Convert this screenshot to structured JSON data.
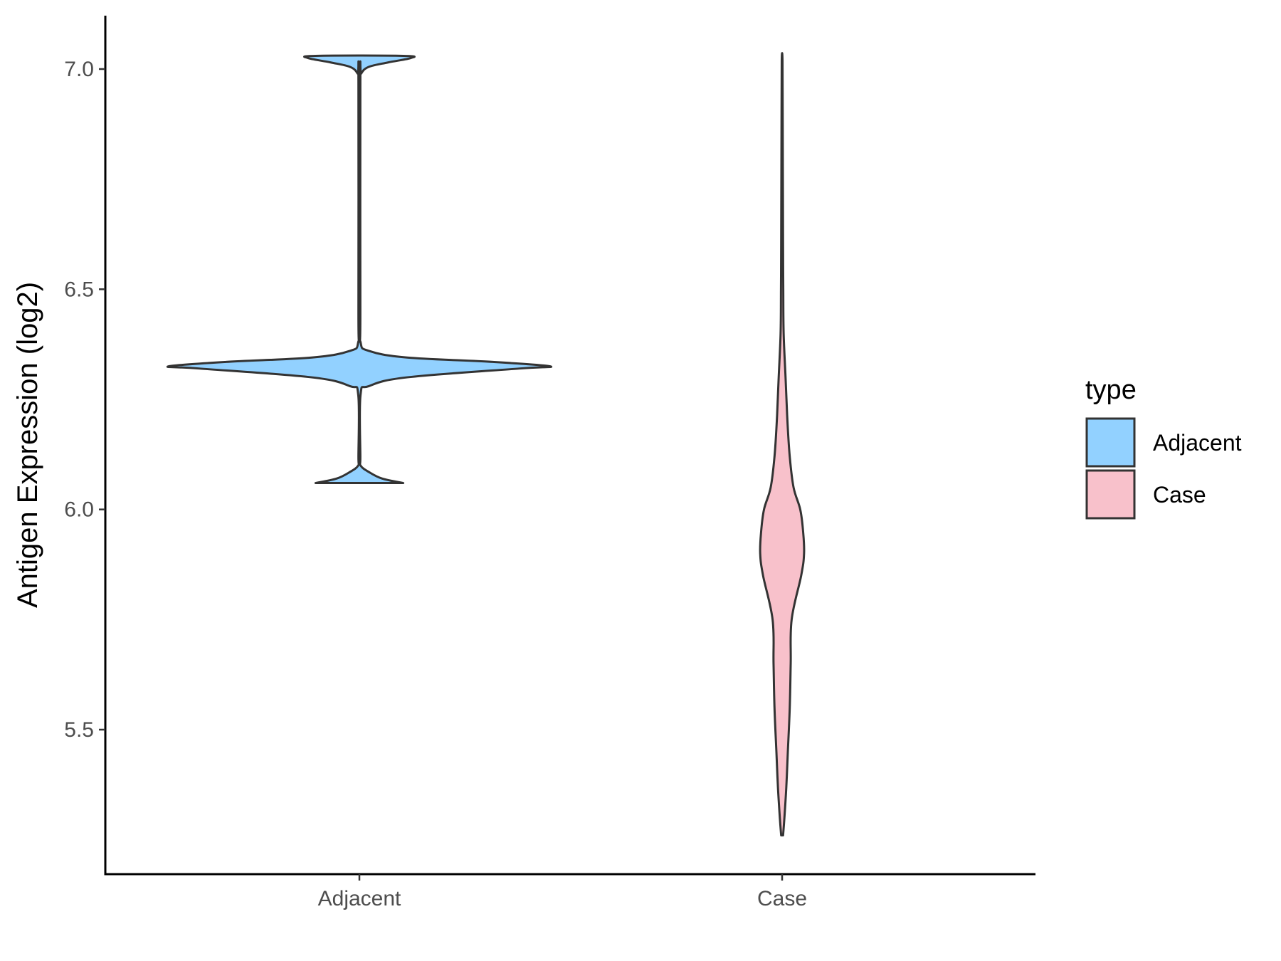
{
  "chart_data": {
    "type": "violin",
    "ylabel": "Antigen Expression (log2)",
    "xlabel": "",
    "categories": [
      "Adjacent",
      "Case"
    ],
    "y_ticks": [
      "5.5",
      "6.0",
      "6.5",
      "7.0"
    ],
    "ylim": [
      5.18,
      7.12
    ],
    "grid": false,
    "legend": {
      "title": "type",
      "position": "right",
      "entries": [
        "Adjacent",
        "Case"
      ]
    },
    "series": [
      {
        "name": "Adjacent",
        "color": "#92D1FF",
        "min": 6.06,
        "max": 7.03,
        "density": [
          [
            6.06,
            0.23
          ],
          [
            6.07,
            0.12
          ],
          [
            6.085,
            0.05
          ],
          [
            6.1,
            0.006
          ],
          [
            6.12,
            0.005
          ],
          [
            6.26,
            0.006
          ],
          [
            6.28,
            0.05
          ],
          [
            6.3,
            0.25
          ],
          [
            6.32,
            0.84
          ],
          [
            6.325,
            1.0
          ],
          [
            6.335,
            0.7
          ],
          [
            6.345,
            0.25
          ],
          [
            6.36,
            0.05
          ],
          [
            6.38,
            0.006
          ],
          [
            6.45,
            0.005
          ],
          [
            6.97,
            0.005
          ],
          [
            6.99,
            0.01
          ],
          [
            7.005,
            0.05
          ],
          [
            7.015,
            0.15
          ],
          [
            7.025,
            0.27
          ],
          [
            7.03,
            0.23
          ]
        ]
      },
      {
        "name": "Case",
        "color": "#F8C1CB",
        "min": 5.26,
        "max": 7.02,
        "density": [
          [
            5.26,
            0.005
          ],
          [
            5.3,
            0.012
          ],
          [
            5.37,
            0.022
          ],
          [
            5.45,
            0.03
          ],
          [
            5.55,
            0.04
          ],
          [
            5.65,
            0.045
          ],
          [
            5.75,
            0.05
          ],
          [
            5.85,
            0.1
          ],
          [
            5.9,
            0.115
          ],
          [
            5.95,
            0.11
          ],
          [
            6.0,
            0.095
          ],
          [
            6.05,
            0.06
          ],
          [
            6.12,
            0.04
          ],
          [
            6.2,
            0.028
          ],
          [
            6.3,
            0.018
          ],
          [
            6.4,
            0.008
          ],
          [
            6.5,
            0.006
          ],
          [
            6.6,
            0.005
          ],
          [
            6.75,
            0.004
          ],
          [
            6.9,
            0.003
          ],
          [
            7.02,
            0.002
          ]
        ]
      }
    ]
  }
}
